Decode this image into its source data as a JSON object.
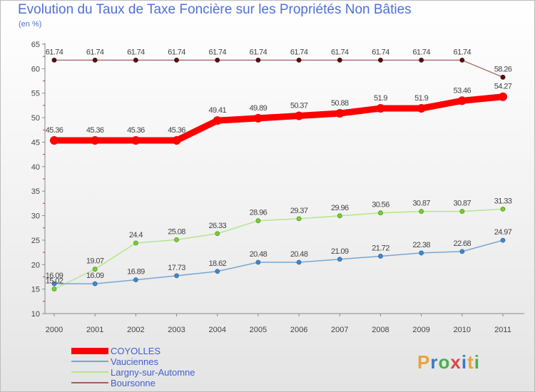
{
  "chart_data": {
    "type": "line",
    "title": "Evolution du Taux de Taxe Foncière sur les Propriétés Non Bâties",
    "subtitle": "(en %)",
    "xlabel": "",
    "ylabel": "",
    "ylim": [
      10,
      65
    ],
    "yticks": [
      10,
      15,
      20,
      25,
      30,
      35,
      40,
      45,
      50,
      55,
      60,
      65
    ],
    "grid": false,
    "legend_position": "bottom-left",
    "categories": [
      "2000",
      "2001",
      "2002",
      "2003",
      "2004",
      "2005",
      "2006",
      "2007",
      "2008",
      "2009",
      "2010",
      "2011"
    ],
    "series": [
      {
        "name": "COYOLLES",
        "color": "#ff0000",
        "marker_color": "#ff0000",
        "label_color": "#444444",
        "values": [
          45.36,
          45.36,
          45.36,
          45.36,
          49.41,
          49.89,
          50.37,
          50.88,
          51.9,
          51.9,
          53.46,
          54.27
        ],
        "labels": [
          "45.36",
          "45.36",
          "45.36",
          "45.36",
          "49.41",
          "49.89",
          "50.37",
          "50.88",
          "51.9",
          "51.9",
          "53.46",
          "54.27"
        ]
      },
      {
        "name": "Vauciennes",
        "color": "#7aa6d2",
        "marker_color": "#3f88cc",
        "label_color": "#444444",
        "values": [
          16.09,
          16.09,
          16.89,
          17.73,
          18.62,
          20.48,
          20.48,
          21.09,
          21.72,
          22.38,
          22.68,
          24.97
        ],
        "labels": [
          "16.09",
          "16.09",
          "16.89",
          "17.73",
          "18.62",
          "20.48",
          "20.48",
          "21.09",
          "21.72",
          "22.38",
          "22.68",
          "24.97"
        ]
      },
      {
        "name": "Largny-sur-Automne",
        "color": "#b4e68a",
        "marker_color": "#7acc3a",
        "label_color": "#444444",
        "values": [
          15.02,
          19.07,
          24.4,
          25.08,
          26.33,
          28.96,
          29.37,
          29.96,
          30.56,
          30.87,
          30.87,
          31.33
        ],
        "labels": [
          "15.02",
          "19.07",
          "24.4",
          "25.08",
          "26.33",
          "28.96",
          "29.37",
          "29.96",
          "30.56",
          "30.87",
          "30.87",
          "31.33"
        ]
      },
      {
        "name": "Boursonne",
        "color": "#a06060",
        "marker_color": "#5a1010",
        "label_color": "#444444",
        "values": [
          61.74,
          61.74,
          61.74,
          61.74,
          61.74,
          61.74,
          61.74,
          61.74,
          61.74,
          61.74,
          61.74,
          58.26
        ],
        "labels": [
          "61.74",
          "61.74",
          "61.74",
          "61.74",
          "61.74",
          "61.74",
          "61.74",
          "61.74",
          "61.74",
          "61.74",
          "61.74",
          "58.26"
        ]
      }
    ]
  },
  "legend": {
    "items": [
      "COYOLLES",
      "Vauciennes",
      "Largny-sur-Automne",
      "Boursonne"
    ]
  },
  "branding": {
    "logo_letters": [
      "P",
      "r",
      "o",
      "x",
      "i",
      "t",
      "i"
    ],
    "logo_colors": [
      "#e8a33c",
      "#3a78c8",
      "#4ab04a",
      "#d84848",
      "#3a78c8",
      "#e8a33c",
      "#4ab04a"
    ]
  }
}
